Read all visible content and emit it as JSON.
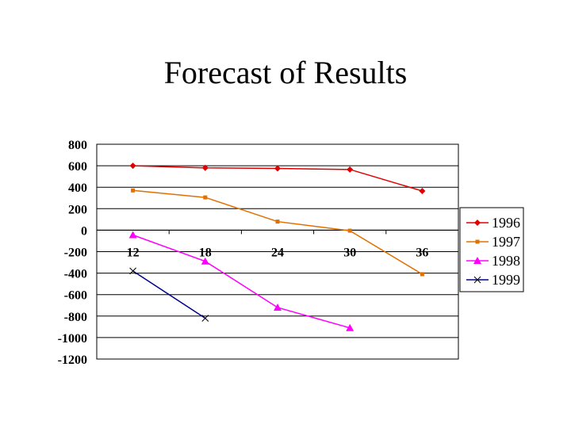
{
  "chart_data": {
    "type": "line",
    "title": "Forecast of Results",
    "xlabel": "",
    "ylabel": "",
    "categories": [
      "12",
      "18",
      "24",
      "30",
      "36"
    ],
    "ylim": [
      -1200,
      800
    ],
    "yticks": [
      800,
      600,
      400,
      200,
      0,
      -200,
      -400,
      -600,
      -800,
      -1000,
      -1200
    ],
    "grid": true,
    "legend_position": "right",
    "series": [
      {
        "name": "1996",
        "color": "#e00000",
        "marker": "diamond",
        "values": [
          600,
          580,
          575,
          565,
          365
        ]
      },
      {
        "name": "1997",
        "color": "#e07000",
        "marker": "square",
        "values": [
          370,
          305,
          80,
          -5,
          -410
        ]
      },
      {
        "name": "1998",
        "color": "#ff00ff",
        "marker": "triangle",
        "values": [
          -45,
          -290,
          -720,
          -910,
          null
        ]
      },
      {
        "name": "1999",
        "color": "#00008b",
        "marker": "x",
        "values": [
          -380,
          -820,
          null,
          null,
          null
        ]
      }
    ]
  }
}
